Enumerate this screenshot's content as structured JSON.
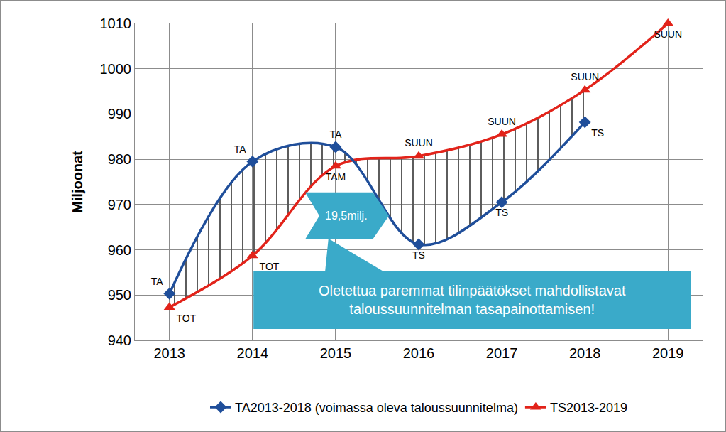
{
  "chart_data": {
    "type": "line",
    "y_label": "Miljoonat",
    "categories": [
      "2013",
      "2014",
      "2015",
      "2016",
      "2017",
      "2018",
      "2019"
    ],
    "series": [
      {
        "name": "TA2013-2018 (voimassa oleva taloussuunnitelma)",
        "color": "#1F4E9A",
        "marker": "diamond",
        "values": [
          950.3,
          979.5,
          982.7,
          961.2,
          970.5,
          988.2,
          null
        ],
        "point_labels": [
          "TA",
          "TA",
          "TA",
          "TS",
          "TS",
          "TS",
          null
        ]
      },
      {
        "name": "TS2013-2019",
        "color": "#E2231A",
        "marker": "triangle-up",
        "values": [
          947.3,
          958.7,
          978.5,
          980.7,
          985.5,
          995.3,
          1010
        ],
        "point_labels": [
          "TOT",
          "TOT",
          "TAM",
          "SUUN",
          "SUUN",
          "SUUN",
          "SUUN"
        ]
      }
    ],
    "ylim": [
      940,
      1010
    ],
    "yticks": [
      940,
      950,
      960,
      970,
      980,
      990,
      1000,
      1010
    ],
    "grid": true,
    "legend": "bottom",
    "line_style": "spline",
    "annotations": [
      {
        "text": [
          "19,5milj."
        ]
      },
      {
        "text": [
          "Oletettua paremmat tilinpäätökset mahdollistavat",
          "taloussuunnitelman tasapainottamisen!"
        ]
      }
    ]
  }
}
